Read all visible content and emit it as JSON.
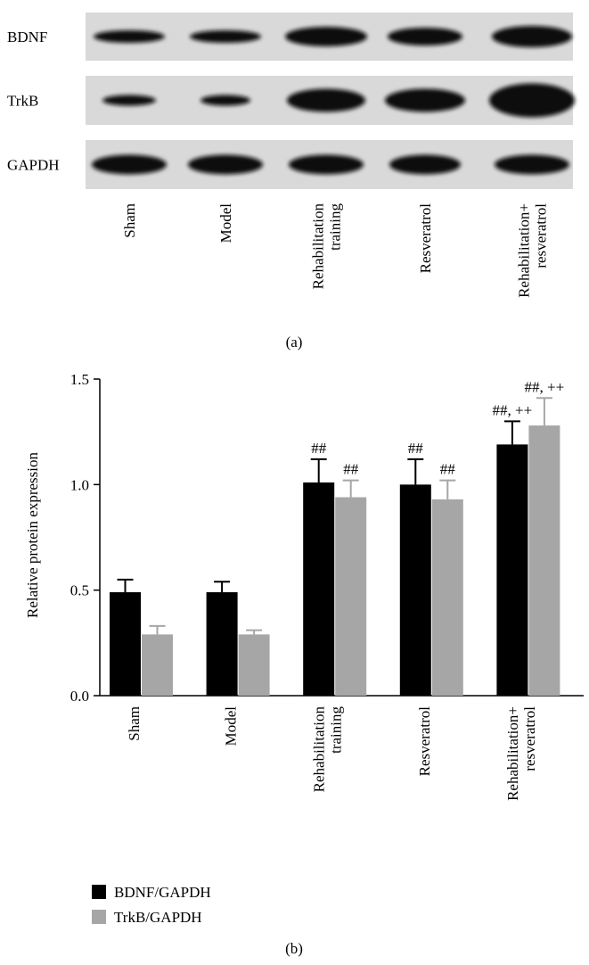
{
  "blot": {
    "rows": [
      "BDNF",
      "TrkB",
      "GAPDH"
    ],
    "lanes": [
      "Sham",
      "Model",
      "Rehabilitation training",
      "Resveratrol",
      "Rehabilitation+ resveratrol"
    ],
    "caption": "(a)"
  },
  "chart_data": {
    "type": "bar",
    "caption": "(b)",
    "y_label": "Relative protein expression",
    "categories": [
      "Sham",
      "Model",
      "Rehabilitation training",
      "Resveratrol",
      "Rehabilitation+ resveratrol"
    ],
    "series": [
      {
        "name": "BDNF/GAPDH",
        "color": "#000000",
        "values": [
          0.49,
          0.49,
          1.01,
          1.0,
          1.19
        ],
        "errors": [
          0.06,
          0.05,
          0.11,
          0.12,
          0.11
        ],
        "annotations": [
          null,
          null,
          "##",
          "##",
          "##, ++"
        ]
      },
      {
        "name": "TrkB/GAPDH",
        "color": "#a6a6a6",
        "values": [
          0.29,
          0.29,
          0.94,
          0.93,
          1.28
        ],
        "errors": [
          0.04,
          0.02,
          0.08,
          0.09,
          0.13
        ],
        "annotations": [
          null,
          null,
          "##",
          "##",
          "##, ++"
        ]
      }
    ],
    "ylim": [
      0,
      1.5
    ],
    "yticks": [
      {
        "value": 0,
        "label": "0.0"
      },
      0.5,
      {
        "value": 1,
        "label": "1.0"
      },
      1.5
    ],
    "legend": "bottom-left"
  }
}
